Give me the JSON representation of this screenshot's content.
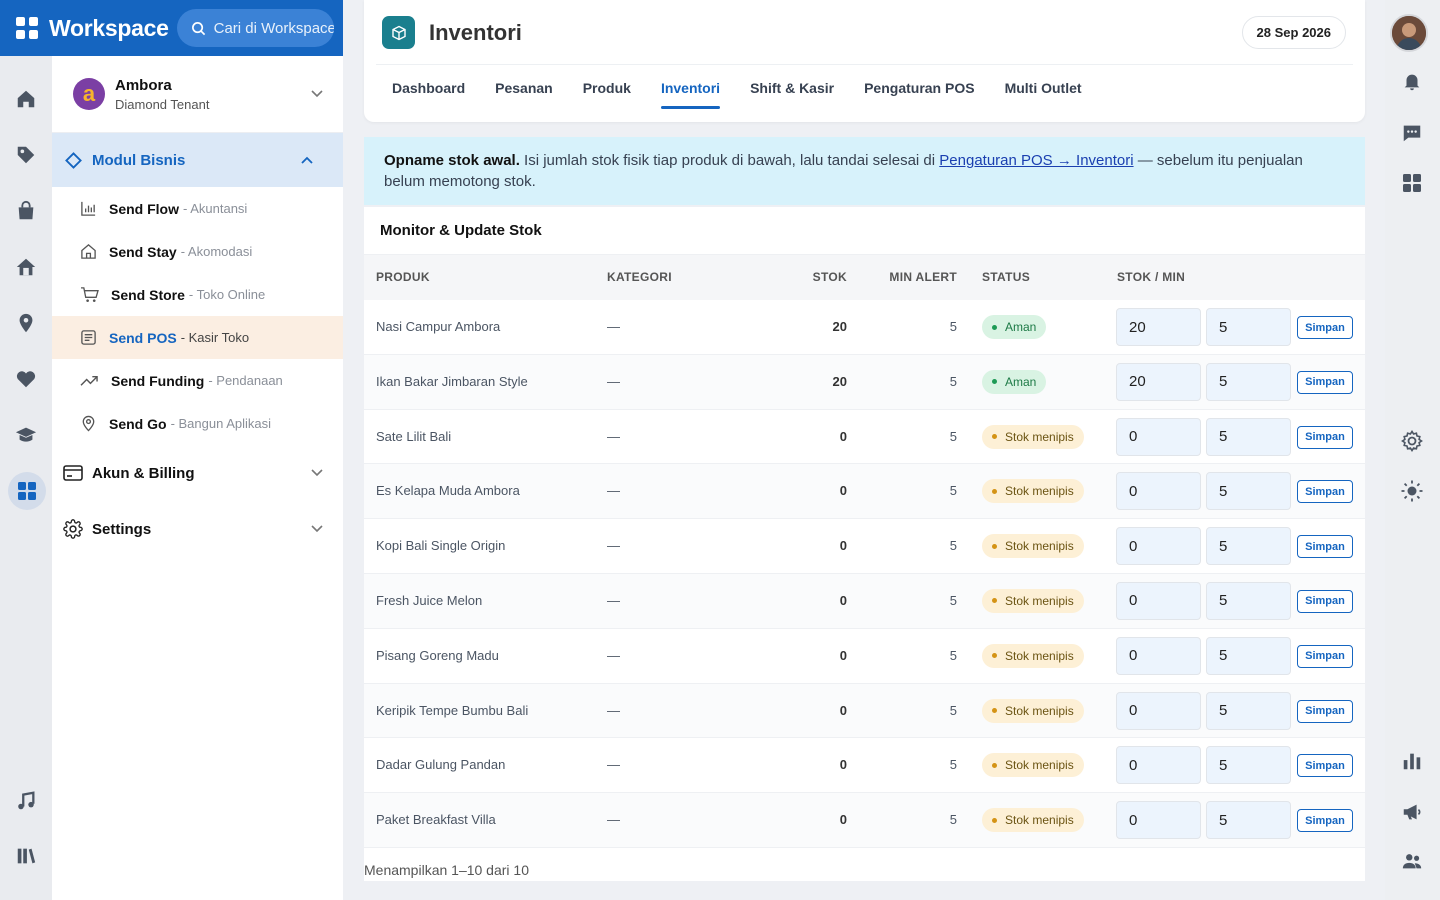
{
  "app": {
    "brand": "Workspace",
    "search_placeholder": "Cari di Workspace"
  },
  "account": {
    "name": "Ambora",
    "tier": "Diamond Tenant"
  },
  "sidebar": {
    "modul_label": "Modul Bisnis",
    "items": [
      {
        "name": "Send Flow",
        "desc": "- Akuntansi"
      },
      {
        "name": "Send Stay",
        "desc": "- Akomodasi"
      },
      {
        "name": "Send Store",
        "desc": "- Toko Online"
      },
      {
        "name": "Send POS",
        "desc": "- Kasir Toko"
      },
      {
        "name": "Send Funding",
        "desc": "- Pendanaan"
      },
      {
        "name": "Send Go",
        "desc": "- Bangun Aplikasi"
      }
    ],
    "billing_label": "Akun & Billing",
    "settings_label": "Settings"
  },
  "header": {
    "title": "Inventori",
    "date": "28 Sep 2026"
  },
  "tabs": [
    "Dashboard",
    "Pesanan",
    "Produk",
    "Inventori",
    "Shift & Kasir",
    "Pengaturan POS",
    "Multi Outlet"
  ],
  "active_tab": "Inventori",
  "alert": {
    "bold": "Opname stok awal.",
    "text1": " Isi jumlah stok fisik tiap produk di bawah, lalu tandai selesai di ",
    "link": "Pengaturan POS → Inventori",
    "text2": " — sebelum itu penjualan belum memotong stok."
  },
  "table": {
    "title": "Monitor & Update Stok",
    "columns": [
      "PRODUK",
      "KATEGORI",
      "STOK",
      "MIN ALERT",
      "STATUS",
      "STOK / MIN"
    ],
    "save_label": "Simpan",
    "rows": [
      {
        "produk": "Nasi Campur Ambora",
        "kategori": "—",
        "stok": "20",
        "min": "5",
        "status": "Aman",
        "status_type": "ok",
        "stok_input": "20",
        "min_input": "5"
      },
      {
        "produk": "Ikan Bakar Jimbaran Style",
        "kategori": "—",
        "stok": "20",
        "min": "5",
        "status": "Aman",
        "status_type": "ok",
        "stok_input": "20",
        "min_input": "5"
      },
      {
        "produk": "Sate Lilit Bali",
        "kategori": "—",
        "stok": "0",
        "min": "5",
        "status": "Stok menipis",
        "status_type": "low",
        "stok_input": "0",
        "min_input": "5"
      },
      {
        "produk": "Es Kelapa Muda Ambora",
        "kategori": "—",
        "stok": "0",
        "min": "5",
        "status": "Stok menipis",
        "status_type": "low",
        "stok_input": "0",
        "min_input": "5"
      },
      {
        "produk": "Kopi Bali Single Origin",
        "kategori": "—",
        "stok": "0",
        "min": "5",
        "status": "Stok menipis",
        "status_type": "low",
        "stok_input": "0",
        "min_input": "5"
      },
      {
        "produk": "Fresh Juice Melon",
        "kategori": "—",
        "stok": "0",
        "min": "5",
        "status": "Stok menipis",
        "status_type": "low",
        "stok_input": "0",
        "min_input": "5"
      },
      {
        "produk": "Pisang Goreng Madu",
        "kategori": "—",
        "stok": "0",
        "min": "5",
        "status": "Stok menipis",
        "status_type": "low",
        "stok_input": "0",
        "min_input": "5"
      },
      {
        "produk": "Keripik Tempe Bumbu Bali",
        "kategori": "—",
        "stok": "0",
        "min": "5",
        "status": "Stok menipis",
        "status_type": "low",
        "stok_input": "0",
        "min_input": "5"
      },
      {
        "produk": "Dadar Gulung Pandan",
        "kategori": "—",
        "stok": "0",
        "min": "5",
        "status": "Stok menipis",
        "status_type": "low",
        "stok_input": "0",
        "min_input": "5"
      },
      {
        "produk": "Paket Breakfast Villa",
        "kategori": "—",
        "stok": "0",
        "min": "5",
        "status": "Stok menipis",
        "status_type": "low",
        "stok_input": "0",
        "min_input": "5"
      }
    ],
    "footer": "Menampilkan 1–10 dari 10"
  }
}
